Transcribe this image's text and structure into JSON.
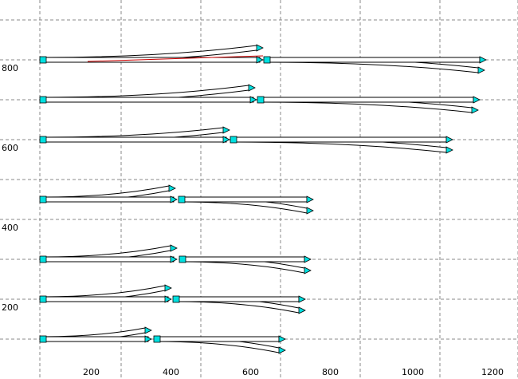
{
  "diagram": {
    "x_axis": {
      "ticks": [
        "200",
        "400",
        "600",
        "800",
        "1000",
        "1200"
      ]
    },
    "y_axis": {
      "ticks": [
        "200",
        "400",
        "600",
        "800"
      ]
    },
    "colors": {
      "connector": "#00e0e0",
      "grid": "#8a8a8a",
      "rail": "#000000",
      "accent": "#cc0000"
    }
  }
}
